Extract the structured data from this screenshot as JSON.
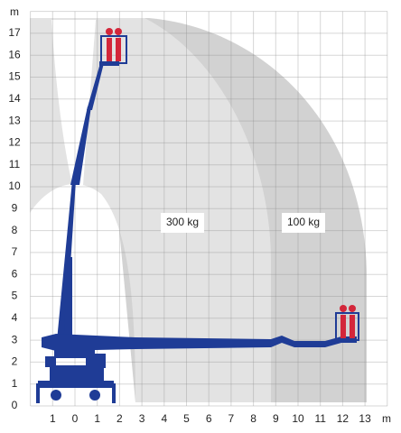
{
  "axes": {
    "y_unit": "m",
    "y_labels": [
      17,
      16,
      15,
      14,
      13,
      12,
      11,
      10,
      9,
      8,
      7,
      6,
      5,
      4,
      3,
      2,
      1,
      0
    ],
    "x_labels": [
      1,
      0,
      1,
      2,
      3,
      4,
      5,
      6,
      7,
      8,
      9,
      10,
      11,
      12,
      13
    ],
    "x_unit": "m"
  },
  "zones": [
    {
      "label": "300 kg"
    },
    {
      "label": "100 kg"
    }
  ]
}
